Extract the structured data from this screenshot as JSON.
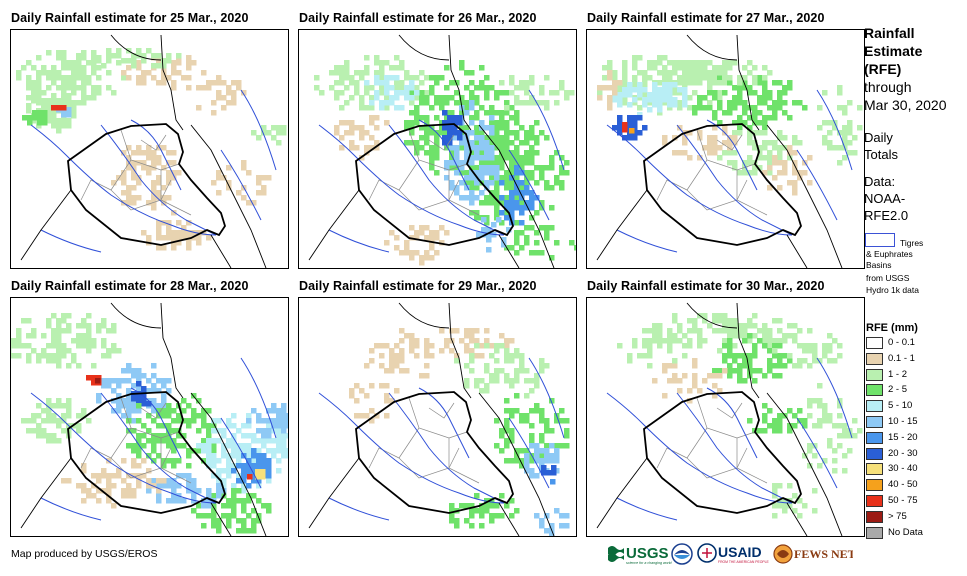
{
  "panels": [
    {
      "title": "Daily Rainfall estimate for 25 Mar., 2020"
    },
    {
      "title": "Daily Rainfall estimate for 26 Mar., 2020"
    },
    {
      "title": "Daily Rainfall estimate for 27 Mar., 2020"
    },
    {
      "title": "Daily Rainfall estimate for 28 Mar., 2020"
    },
    {
      "title": "Daily Rainfall estimate for 29 Mar., 2020"
    },
    {
      "title": "Daily Rainfall estimate for 30 Mar., 2020"
    }
  ],
  "sidebar": {
    "title_line1": "Rainfall",
    "title_line2": "Estimate",
    "title_line3": "(RFE)",
    "through": "through",
    "date": "Mar 30, 2020",
    "daily": "Daily",
    "totals": "Totals",
    "data_label": "Data:",
    "data_src1": "NOAA-",
    "data_src2": "RFE2.0",
    "basin_line1": "Tigres",
    "basin_line2": "& Euphrates",
    "basin_line3": "Basins",
    "basin_line4": "from USGS",
    "basin_line5": "Hydro 1k data"
  },
  "legend": {
    "title": "RFE (mm)",
    "items": [
      {
        "label": "0 - 0.1",
        "color": "#ffffff"
      },
      {
        "label": "0.1 - 1",
        "color": "#e8d3b0"
      },
      {
        "label": "1 - 2",
        "color": "#b9f0b0"
      },
      {
        "label": "2 - 5",
        "color": "#6fe26a"
      },
      {
        "label": "5 - 10",
        "color": "#b8eef5"
      },
      {
        "label": "10 - 15",
        "color": "#8ec9f5"
      },
      {
        "label": "15 - 20",
        "color": "#4a96ec"
      },
      {
        "label": "20 - 30",
        "color": "#2a5fd6"
      },
      {
        "label": "30 - 40",
        "color": "#f6e07a"
      },
      {
        "label": "40 - 50",
        "color": "#f5a11c"
      },
      {
        "label": "50 - 75",
        "color": "#e8311a"
      },
      {
        "label": "> 75",
        "color": "#9c1b14"
      },
      {
        "label": "No Data",
        "color": "#a9a9a9"
      }
    ]
  },
  "footer": {
    "credit": "Map produced by USGS/EROS",
    "logo_usgs": "USGS",
    "logo_usgs_tag": "science for a changing world",
    "logo_usaid": "USAID",
    "logo_usaid_tag": "FROM THE AMERICAN PEOPLE",
    "logo_fews": "FEWS NET"
  }
}
